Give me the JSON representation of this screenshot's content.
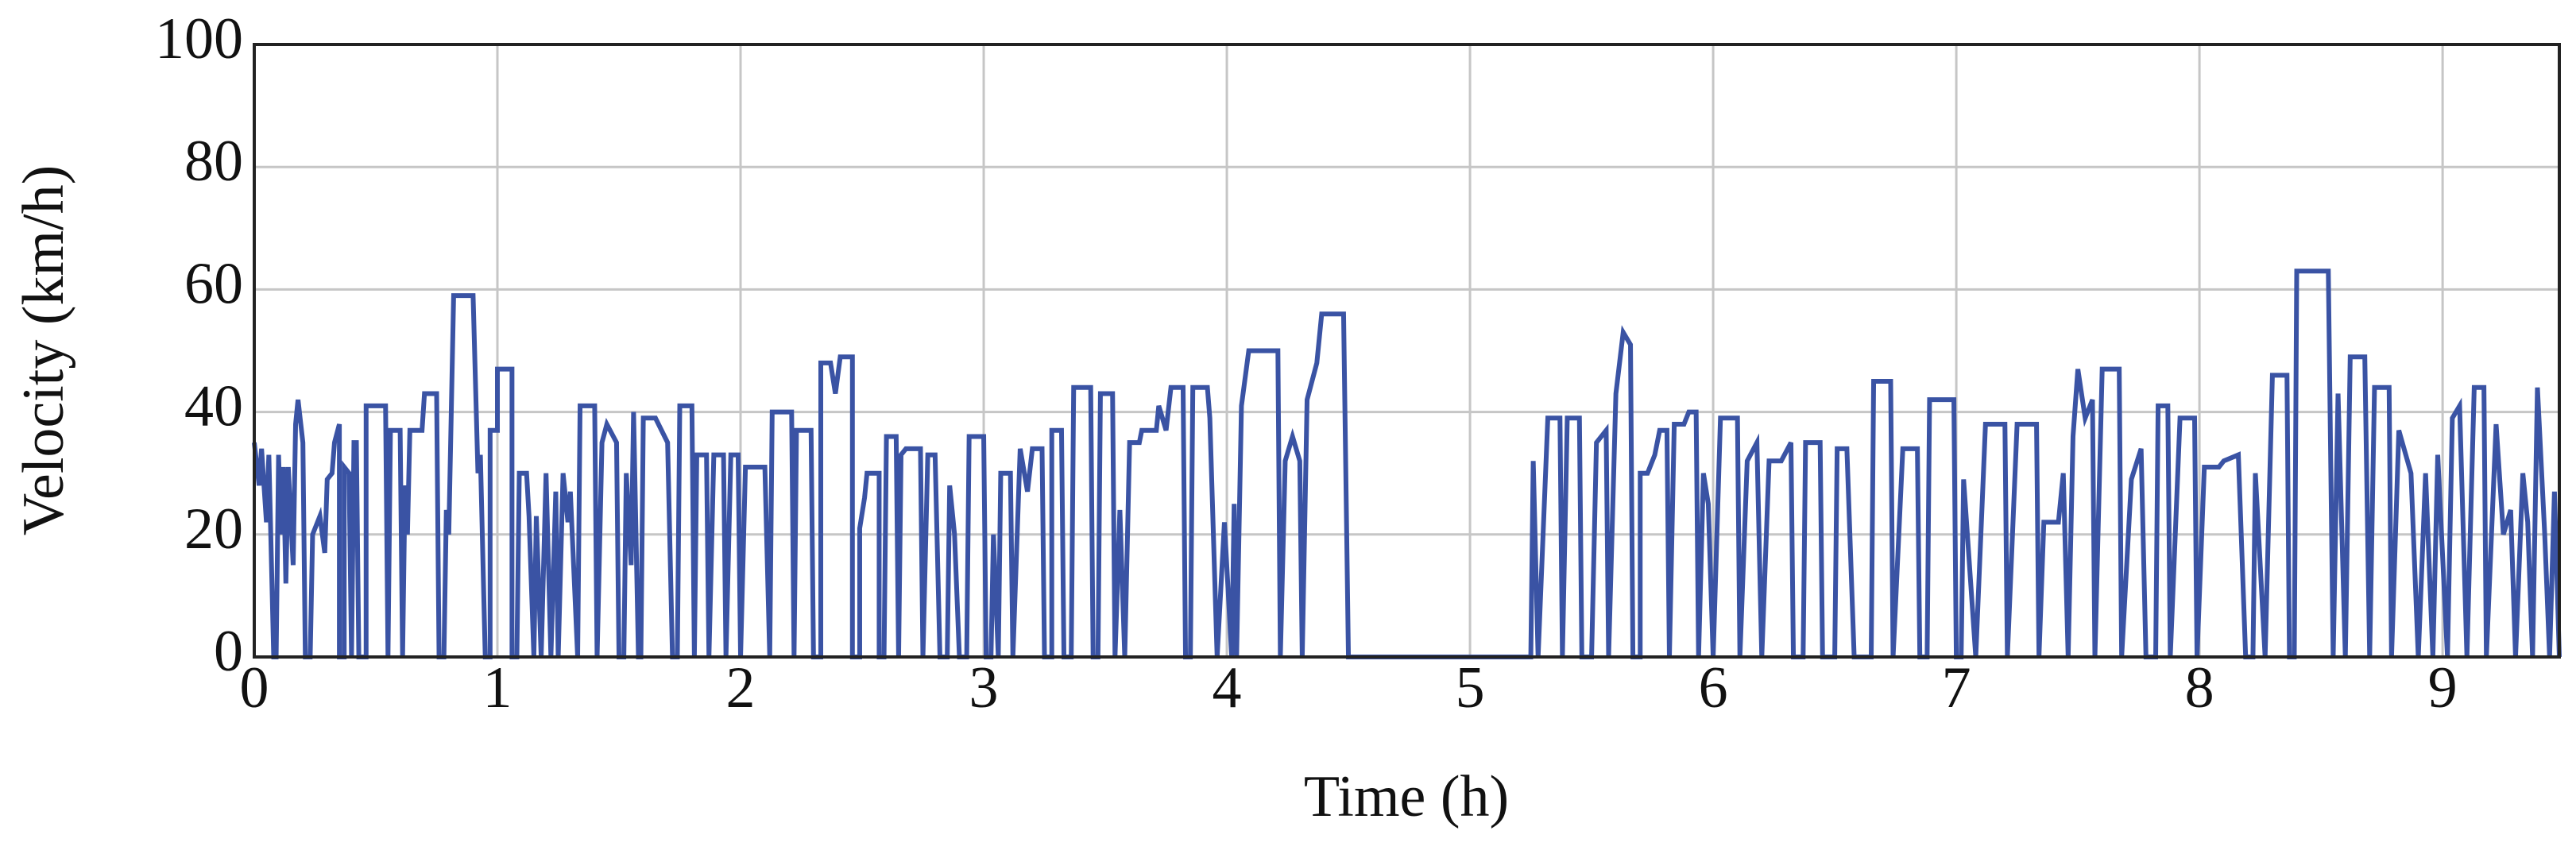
{
  "chart_data": {
    "type": "line",
    "xlabel": "Time (h)",
    "ylabel": "Velocity (km/h)",
    "color": "#3a53a4",
    "grid": true,
    "xlim": [
      0,
      9.48
    ],
    "ylim": [
      0,
      100
    ],
    "xticks": [
      0,
      1,
      2,
      3,
      4,
      5,
      6,
      7,
      8,
      9
    ],
    "yticks": [
      0,
      20,
      40,
      60,
      80,
      100
    ],
    "x": [
      0,
      0.02,
      0.03,
      0.05,
      0.06,
      0.08,
      0.09,
      0.1,
      0.11,
      0.12,
      0.13,
      0.14,
      0.16,
      0.17,
      0.18,
      0.2,
      0.21,
      0.23,
      0.24,
      0.27,
      0.29,
      0.3,
      0.32,
      0.33,
      0.35,
      0.35,
      0.37,
      0.37,
      0.39,
      0.4,
      0.41,
      0.42,
      0.43,
      0.46,
      0.46,
      0.54,
      0.55,
      0.56,
      0.6,
      0.61,
      0.62,
      0.63,
      0.64,
      0.69,
      0.7,
      0.75,
      0.76,
      0.78,
      0.79,
      0.8,
      0.82,
      0.9,
      0.92,
      0.93,
      0.95,
      0.97,
      0.97,
      1.0,
      1.0,
      1.06,
      1.06,
      1.08,
      1.09,
      1.12,
      1.13,
      1.15,
      1.16,
      1.18,
      1.2,
      1.22,
      1.24,
      1.25,
      1.27,
      1.29,
      1.3,
      1.33,
      1.34,
      1.4,
      1.41,
      1.43,
      1.45,
      1.49,
      1.5,
      1.52,
      1.53,
      1.55,
      1.56,
      1.58,
      1.59,
      1.6,
      1.65,
      1.7,
      1.72,
      1.74,
      1.75,
      1.8,
      1.81,
      1.82,
      1.86,
      1.87,
      1.89,
      1.93,
      1.94,
      1.96,
      1.99,
      2.0,
      2.02,
      2.1,
      2.12,
      2.13,
      2.21,
      2.22,
      2.23,
      2.29,
      2.3,
      2.33,
      2.33,
      2.37,
      2.39,
      2.41,
      2.46,
      2.46,
      2.49,
      2.49,
      2.51,
      2.52,
      2.57,
      2.57,
      2.59,
      2.6,
      2.64,
      2.65,
      2.66,
      2.68,
      2.74,
      2.75,
      2.77,
      2.8,
      2.82,
      2.85,
      2.86,
      2.88,
      2.9,
      2.93,
      2.94,
      3.0,
      3.01,
      3.03,
      3.04,
      3.06,
      3.07,
      3.11,
      3.12,
      3.15,
      3.18,
      3.2,
      3.24,
      3.25,
      3.28,
      3.28,
      3.32,
      3.33,
      3.36,
      3.37,
      3.44,
      3.45,
      3.47,
      3.48,
      3.53,
      3.54,
      3.56,
      3.58,
      3.6,
      3.64,
      3.65,
      3.71,
      3.72,
      3.75,
      3.77,
      3.82,
      3.83,
      3.85,
      3.86,
      3.92,
      3.93,
      3.96,
      3.99,
      4.02,
      4.03,
      4.04,
      4.06,
      4.09,
      4.21,
      4.22,
      4.24,
      4.27,
      4.3,
      4.31,
      4.33,
      4.37,
      4.39,
      4.48,
      4.5,
      5.25,
      5.26,
      5.28,
      5.32,
      5.37,
      5.38,
      5.4,
      5.45,
      5.46,
      5.5,
      5.52,
      5.56,
      5.57,
      5.6,
      5.63,
      5.66,
      5.67,
      5.7,
      5.7,
      5.73,
      5.76,
      5.78,
      5.81,
      5.82,
      5.84,
      5.88,
      5.9,
      5.93,
      5.94,
      5.96,
      5.98,
      6.0,
      6.03,
      6.1,
      6.11,
      6.14,
      6.18,
      6.2,
      6.23,
      6.28,
      6.32,
      6.33,
      6.37,
      6.38,
      6.44,
      6.45,
      6.5,
      6.51,
      6.55,
      6.58,
      6.65,
      6.66,
      6.73,
      6.74,
      6.78,
      6.84,
      6.85,
      6.88,
      6.89,
      6.99,
      7.0,
      7.02,
      7.03,
      7.08,
      7.12,
      7.2,
      7.21,
      7.25,
      7.33,
      7.34,
      7.36,
      7.42,
      7.44,
      7.46,
      7.48,
      7.5,
      7.53,
      7.56,
      7.57,
      7.6,
      7.67,
      7.68,
      7.72,
      7.76,
      7.78,
      7.82,
      7.83,
      7.87,
      7.88,
      7.92,
      7.98,
      7.99,
      8.02,
      8.08,
      8.1,
      8.16,
      8.19,
      8.22,
      8.23,
      8.27,
      8.3,
      8.36,
      8.37,
      8.39,
      8.4,
      8.53,
      8.55,
      8.57,
      8.6,
      8.62,
      8.68,
      8.7,
      8.72,
      8.78,
      8.79,
      8.82,
      8.87,
      8.9,
      8.93,
      8.96,
      8.98,
      9.02,
      9.04,
      9.07,
      9.1,
      9.13,
      9.17,
      9.18,
      9.22,
      9.25,
      9.28,
      9.3,
      9.33,
      9.35,
      9.37,
      9.39,
      9.42,
      9.44,
      9.46,
      9.48
    ],
    "values": [
      35,
      28,
      34,
      22,
      33,
      0,
      0,
      33,
      20,
      31,
      12,
      31,
      15,
      38,
      42,
      35,
      0,
      0,
      20,
      23,
      17,
      29,
      30,
      35,
      38,
      0,
      0,
      31,
      30,
      0,
      35,
      35,
      0,
      0,
      41,
      41,
      0,
      37,
      37,
      0,
      28,
      20,
      37,
      37,
      43,
      43,
      0,
      0,
      24,
      20,
      59,
      59,
      30,
      33,
      0,
      0,
      37,
      37,
      47,
      47,
      0,
      0,
      30,
      30,
      23,
      0,
      23,
      0,
      30,
      0,
      27,
      0,
      30,
      22,
      27,
      0,
      41,
      41,
      0,
      35,
      38,
      35,
      0,
      0,
      30,
      15,
      40,
      0,
      0,
      39,
      39,
      35,
      0,
      0,
      41,
      41,
      0,
      33,
      33,
      0,
      33,
      33,
      0,
      33,
      33,
      0,
      31,
      31,
      0,
      40,
      40,
      0,
      37,
      37,
      0,
      0,
      48,
      48,
      43,
      49,
      49,
      0,
      0,
      21,
      26,
      30,
      30,
      0,
      0,
      36,
      36,
      0,
      33,
      34,
      34,
      0,
      33,
      33,
      0,
      0,
      28,
      20,
      0,
      0,
      36,
      36,
      0,
      0,
      20,
      0,
      30,
      30,
      0,
      34,
      27,
      34,
      34,
      0,
      0,
      37,
      37,
      0,
      0,
      44,
      44,
      0,
      0,
      43,
      43,
      0,
      24,
      0,
      35,
      35,
      37,
      37,
      41,
      37,
      44,
      44,
      0,
      0,
      44,
      44,
      39,
      0,
      22,
      0,
      25,
      0,
      41,
      50,
      50,
      0,
      32,
      36,
      32,
      0,
      42,
      48,
      56,
      56,
      0,
      0,
      32,
      0,
      39,
      39,
      0,
      39,
      39,
      0,
      0,
      35,
      37,
      0,
      43,
      53,
      51,
      0,
      0,
      30,
      30,
      33,
      37,
      37,
      0,
      38,
      38,
      40,
      40,
      0,
      30,
      25,
      0,
      39,
      39,
      0,
      32,
      35,
      0,
      32,
      32,
      35,
      0,
      0,
      35,
      35,
      0,
      0,
      34,
      34,
      0,
      0,
      45,
      45,
      0,
      34,
      34,
      0,
      0,
      42,
      42,
      0,
      0,
      29,
      0,
      38,
      38,
      0,
      38,
      38,
      0,
      22,
      22,
      30,
      0,
      36,
      47,
      39,
      42,
      0,
      47,
      47,
      0,
      29,
      34,
      0,
      0,
      41,
      41,
      0,
      39,
      39,
      0,
      31,
      31,
      32,
      33,
      0,
      0,
      30,
      0,
      46,
      46,
      0,
      0,
      63,
      63,
      0,
      43,
      0,
      49,
      49,
      0,
      44,
      44,
      0,
      37,
      30,
      0,
      30,
      0,
      33,
      0,
      39,
      41,
      0,
      44,
      44,
      0,
      38,
      20,
      24,
      0,
      30,
      22,
      0,
      44,
      20,
      0,
      27,
      0
    ]
  }
}
